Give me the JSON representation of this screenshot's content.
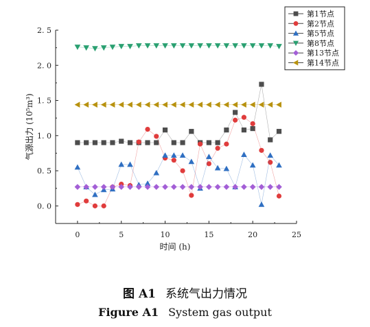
{
  "chart_data": {
    "type": "line",
    "title": "",
    "xlabel": "时间 (h)",
    "ylabel": "气源出力 (10⁵m³)",
    "xlim": [
      -2.5,
      25
    ],
    "ylim": [
      -0.25,
      2.5
    ],
    "xticks": [
      0,
      5,
      10,
      15,
      20,
      25
    ],
    "yticks": [
      0.0,
      0.5,
      1.0,
      1.5,
      2.0,
      2.5
    ],
    "xtick_labels": [
      "0",
      "5",
      "10",
      "15",
      "20",
      "25"
    ],
    "ytick_labels": [
      "0. 0",
      "0. 5",
      "1. 0",
      "1. 5",
      "2. 0",
      "2. 5"
    ],
    "grid": false,
    "legend_position": "top-right",
    "x": [
      0,
      1,
      2,
      3,
      4,
      5,
      6,
      7,
      8,
      9,
      10,
      11,
      12,
      13,
      14,
      15,
      16,
      17,
      18,
      19,
      20,
      21,
      22,
      23
    ],
    "series": [
      {
        "name": "第1节点",
        "marker": "square",
        "color": "#4d4d4d",
        "values": [
          0.9,
          0.9,
          0.9,
          0.9,
          0.9,
          0.92,
          0.9,
          0.9,
          0.9,
          0.9,
          1.08,
          0.9,
          0.9,
          1.06,
          0.9,
          0.9,
          0.9,
          1.08,
          1.33,
          1.08,
          1.1,
          1.73,
          0.94,
          1.06
        ]
      },
      {
        "name": "第2节点",
        "marker": "circle",
        "color": "#e03c3c",
        "values": [
          0.02,
          0.07,
          0.0,
          0.0,
          0.27,
          0.31,
          0.29,
          0.91,
          1.09,
          0.99,
          0.68,
          0.65,
          0.5,
          0.15,
          0.88,
          0.6,
          0.82,
          0.88,
          1.22,
          1.26,
          1.17,
          0.79,
          0.62,
          0.14
        ]
      },
      {
        "name": "第5节点",
        "marker": "triangle-up",
        "color": "#2f6fc2",
        "values": [
          0.55,
          0.27,
          0.16,
          0.23,
          0.24,
          0.59,
          0.59,
          0.3,
          0.32,
          0.47,
          0.72,
          0.72,
          0.72,
          0.63,
          0.25,
          0.7,
          0.54,
          0.53,
          0.27,
          0.73,
          0.58,
          0.02,
          0.72,
          0.58
        ]
      },
      {
        "name": "第8节点",
        "marker": "triangle-down",
        "color": "#2aa071",
        "values": [
          2.26,
          2.25,
          2.24,
          2.25,
          2.26,
          2.27,
          2.27,
          2.28,
          2.28,
          2.28,
          2.28,
          2.28,
          2.28,
          2.28,
          2.28,
          2.28,
          2.28,
          2.28,
          2.28,
          2.28,
          2.28,
          2.28,
          2.28,
          2.27
        ]
      },
      {
        "name": "第13节点",
        "marker": "diamond",
        "color": "#a35fd6",
        "values": [
          0.27,
          0.27,
          0.27,
          0.27,
          0.27,
          0.27,
          0.27,
          0.27,
          0.27,
          0.27,
          0.27,
          0.27,
          0.27,
          0.27,
          0.27,
          0.27,
          0.27,
          0.27,
          0.27,
          0.27,
          0.27,
          0.27,
          0.27,
          0.27
        ]
      },
      {
        "name": "第14节点",
        "marker": "triangle-left",
        "color": "#b8920f",
        "values": [
          1.44,
          1.44,
          1.44,
          1.44,
          1.44,
          1.44,
          1.44,
          1.44,
          1.44,
          1.44,
          1.44,
          1.44,
          1.44,
          1.44,
          1.44,
          1.44,
          1.44,
          1.44,
          1.44,
          1.44,
          1.44,
          1.44,
          1.44,
          1.44
        ]
      }
    ]
  },
  "caption": {
    "cn_label": "图 A1",
    "cn_text": "系统气出力情况",
    "en_label": "Figure A1",
    "en_text": "System gas output"
  }
}
